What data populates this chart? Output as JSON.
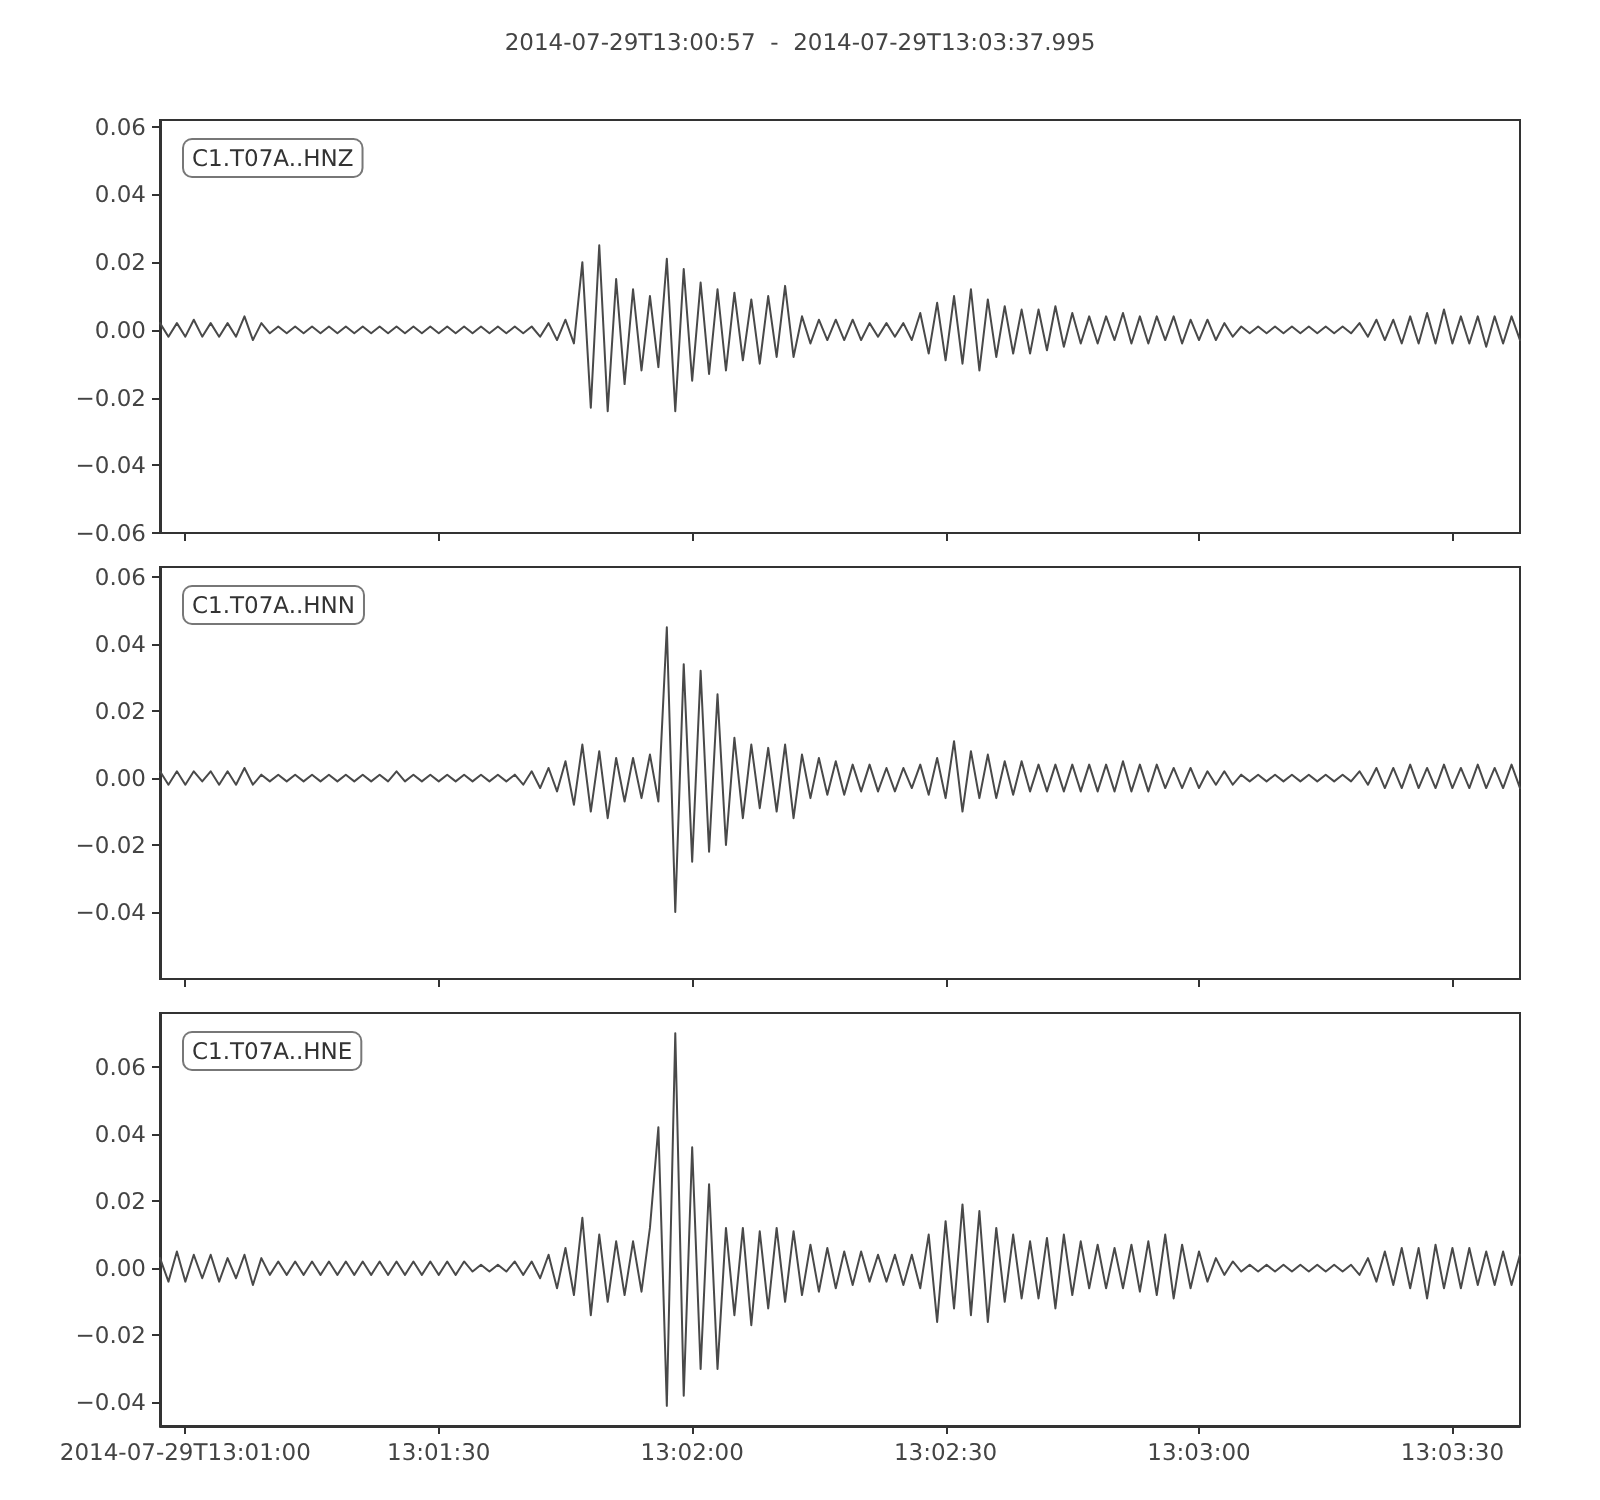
{
  "chart_data": [
    {
      "type": "line",
      "title": "2014-07-29T13:00:57  -  2014-07-29T13:03:37.995",
      "annotations": [
        "C1.T07A..HNZ"
      ],
      "color": "#494949",
      "x": [
        "2014-07-29T13:00:57",
        "2014-07-29T13:00:58",
        "2014-07-29T13:00:59",
        "2014-07-29T13:01:00",
        "2014-07-29T13:01:01",
        "2014-07-29T13:01:02",
        "2014-07-29T13:01:03",
        "2014-07-29T13:01:04",
        "2014-07-29T13:01:05",
        "2014-07-29T13:01:06",
        "2014-07-29T13:01:07",
        "2014-07-29T13:01:08",
        "2014-07-29T13:01:09",
        "2014-07-29T13:01:10",
        "2014-07-29T13:01:11",
        "2014-07-29T13:01:12",
        "2014-07-29T13:01:13",
        "2014-07-29T13:01:14",
        "2014-07-29T13:01:15",
        "2014-07-29T13:01:16",
        "2014-07-29T13:01:17",
        "2014-07-29T13:01:18",
        "2014-07-29T13:01:19",
        "2014-07-29T13:01:20",
        "2014-07-29T13:01:21",
        "2014-07-29T13:01:22",
        "2014-07-29T13:01:23",
        "2014-07-29T13:01:24",
        "2014-07-29T13:01:25",
        "2014-07-29T13:01:26",
        "2014-07-29T13:01:27",
        "2014-07-29T13:01:28",
        "2014-07-29T13:01:29",
        "2014-07-29T13:01:30",
        "2014-07-29T13:01:31",
        "2014-07-29T13:01:32",
        "2014-07-29T13:01:33",
        "2014-07-29T13:01:34",
        "2014-07-29T13:01:35",
        "2014-07-29T13:01:36",
        "2014-07-29T13:01:37",
        "2014-07-29T13:01:38",
        "2014-07-29T13:01:39",
        "2014-07-29T13:01:40",
        "2014-07-29T13:01:41",
        "2014-07-29T13:01:42",
        "2014-07-29T13:01:43",
        "2014-07-29T13:01:44",
        "2014-07-29T13:01:45",
        "2014-07-29T13:01:46",
        "2014-07-29T13:01:47",
        "2014-07-29T13:01:48",
        "2014-07-29T13:01:49",
        "2014-07-29T13:01:50",
        "2014-07-29T13:01:51",
        "2014-07-29T13:01:52",
        "2014-07-29T13:01:53",
        "2014-07-29T13:01:54",
        "2014-07-29T13:01:55",
        "2014-07-29T13:01:56",
        "2014-07-29T13:01:57",
        "2014-07-29T13:01:58",
        "2014-07-29T13:01:59",
        "2014-07-29T13:02:00",
        "2014-07-29T13:02:01",
        "2014-07-29T13:02:02",
        "2014-07-29T13:02:03",
        "2014-07-29T13:02:04",
        "2014-07-29T13:02:05",
        "2014-07-29T13:02:06",
        "2014-07-29T13:02:07",
        "2014-07-29T13:02:08",
        "2014-07-29T13:02:09",
        "2014-07-29T13:02:10",
        "2014-07-29T13:02:11",
        "2014-07-29T13:02:12",
        "2014-07-29T13:02:13",
        "2014-07-29T13:02:14",
        "2014-07-29T13:02:15",
        "2014-07-29T13:02:16",
        "2014-07-29T13:02:17",
        "2014-07-29T13:02:18",
        "2014-07-29T13:02:19",
        "2014-07-29T13:02:20",
        "2014-07-29T13:02:21",
        "2014-07-29T13:02:22",
        "2014-07-29T13:02:23",
        "2014-07-29T13:02:24",
        "2014-07-29T13:02:25",
        "2014-07-29T13:02:26",
        "2014-07-29T13:02:27",
        "2014-07-29T13:02:28",
        "2014-07-29T13:02:29",
        "2014-07-29T13:02:30",
        "2014-07-29T13:02:31",
        "2014-07-29T13:02:32",
        "2014-07-29T13:02:33",
        "2014-07-29T13:02:34",
        "2014-07-29T13:02:35",
        "2014-07-29T13:02:36",
        "2014-07-29T13:02:37",
        "2014-07-29T13:02:38",
        "2014-07-29T13:02:39",
        "2014-07-29T13:02:40",
        "2014-07-29T13:02:41",
        "2014-07-29T13:02:42",
        "2014-07-29T13:02:43",
        "2014-07-29T13:02:44",
        "2014-07-29T13:02:45",
        "2014-07-29T13:02:46",
        "2014-07-29T13:02:47",
        "2014-07-29T13:02:48",
        "2014-07-29T13:02:49",
        "2014-07-29T13:02:50",
        "2014-07-29T13:02:51",
        "2014-07-29T13:02:52",
        "2014-07-29T13:02:53",
        "2014-07-29T13:02:54",
        "2014-07-29T13:02:55",
        "2014-07-29T13:02:56",
        "2014-07-29T13:02:57",
        "2014-07-29T13:02:58",
        "2014-07-29T13:02:59",
        "2014-07-29T13:03:00",
        "2014-07-29T13:03:01",
        "2014-07-29T13:03:02",
        "2014-07-29T13:03:03",
        "2014-07-29T13:03:04",
        "2014-07-29T13:03:05",
        "2014-07-29T13:03:06",
        "2014-07-29T13:03:07",
        "2014-07-29T13:03:08",
        "2014-07-29T13:03:09",
        "2014-07-29T13:03:10",
        "2014-07-29T13:03:11",
        "2014-07-29T13:03:12",
        "2014-07-29T13:03:13",
        "2014-07-29T13:03:14",
        "2014-07-29T13:03:15",
        "2014-07-29T13:03:16",
        "2014-07-29T13:03:17",
        "2014-07-29T13:03:18",
        "2014-07-29T13:03:19",
        "2014-07-29T13:03:20",
        "2014-07-29T13:03:21",
        "2014-07-29T13:03:22",
        "2014-07-29T13:03:23",
        "2014-07-29T13:03:24",
        "2014-07-29T13:03:25",
        "2014-07-29T13:03:26",
        "2014-07-29T13:03:27",
        "2014-07-29T13:03:28",
        "2014-07-29T13:03:29",
        "2014-07-29T13:03:30",
        "2014-07-29T13:03:31",
        "2014-07-29T13:03:32",
        "2014-07-29T13:03:33",
        "2014-07-29T13:03:34",
        "2014-07-29T13:03:35",
        "2014-07-29T13:03:36",
        "2014-07-29T13:03:37",
        "2014-07-29T13:03:38"
      ],
      "values": [
        0.002,
        -0.002,
        0.002,
        -0.002,
        0.003,
        -0.002,
        0.002,
        -0.002,
        0.002,
        -0.002,
        0.004,
        -0.003,
        0.002,
        -0.001,
        0.001,
        -0.001,
        0.001,
        -0.001,
        0.001,
        -0.001,
        0.001,
        -0.001,
        0.001,
        -0.001,
        0.001,
        -0.001,
        0.001,
        -0.001,
        0.001,
        -0.001,
        0.001,
        -0.001,
        0.001,
        -0.001,
        0.001,
        -0.001,
        0.001,
        -0.001,
        0.001,
        -0.001,
        0.001,
        -0.001,
        0.001,
        -0.001,
        0.001,
        -0.002,
        0.002,
        -0.003,
        0.003,
        -0.004,
        0.02,
        -0.023,
        0.025,
        -0.024,
        0.015,
        -0.016,
        0.012,
        -0.012,
        0.01,
        -0.011,
        0.021,
        -0.024,
        0.018,
        -0.015,
        0.014,
        -0.013,
        0.012,
        -0.012,
        0.011,
        -0.009,
        0.009,
        -0.01,
        0.01,
        -0.008,
        0.013,
        -0.008,
        0.004,
        -0.004,
        0.003,
        -0.003,
        0.003,
        -0.003,
        0.003,
        -0.003,
        0.002,
        -0.002,
        0.002,
        -0.002,
        0.002,
        -0.003,
        0.005,
        -0.007,
        0.008,
        -0.009,
        0.01,
        -0.01,
        0.012,
        -0.012,
        0.009,
        -0.008,
        0.007,
        -0.007,
        0.006,
        -0.007,
        0.006,
        -0.006,
        0.007,
        -0.005,
        0.005,
        -0.004,
        0.004,
        -0.004,
        0.004,
        -0.003,
        0.005,
        -0.004,
        0.004,
        -0.004,
        0.004,
        -0.003,
        0.004,
        -0.004,
        0.003,
        -0.003,
        0.003,
        -0.003,
        0.002,
        -0.002,
        0.001,
        -0.001,
        0.001,
        -0.001,
        0.001,
        -0.001,
        0.001,
        -0.001,
        0.001,
        -0.001,
        0.001,
        -0.001,
        0.001,
        -0.001,
        0.002,
        -0.002,
        0.003,
        -0.003,
        0.003,
        -0.004,
        0.004,
        -0.004,
        0.005,
        -0.004,
        0.006,
        -0.004,
        0.004,
        -0.004,
        0.004,
        -0.005,
        0.004,
        -0.004,
        0.004,
        -0.003
      ],
      "xlim": [
        "2014-07-29T13:00:57",
        "2014-07-29T13:03:38"
      ],
      "xticks": [
        "2014-07-29T13:01:00",
        "2014-07-29T13:01:30",
        "2014-07-29T13:02:00",
        "2014-07-29T13:02:30",
        "2014-07-29T13:03:00",
        "2014-07-29T13:03:30"
      ],
      "ylim": [
        -0.06,
        0.062
      ],
      "yticks": [
        {
          "value": -0.06,
          "label": "−0.06"
        },
        {
          "value": -0.04,
          "label": "−0.04"
        },
        {
          "value": -0.02,
          "label": "−0.02"
        },
        {
          "value": 0,
          "label": "0.00"
        },
        0.02,
        0.04,
        0.06
      ],
      "tick_labels": "y"
    },
    {
      "type": "line",
      "annotations": [
        "C1.T07A..HNN"
      ],
      "color": "#494949",
      "x": [
        "2014-07-29T13:00:57",
        "2014-07-29T13:00:58",
        "2014-07-29T13:00:59",
        "2014-07-29T13:01:00",
        "2014-07-29T13:01:01",
        "2014-07-29T13:01:02",
        "2014-07-29T13:01:03",
        "2014-07-29T13:01:04",
        "2014-07-29T13:01:05",
        "2014-07-29T13:01:06",
        "2014-07-29T13:01:07",
        "2014-07-29T13:01:08",
        "2014-07-29T13:01:09",
        "2014-07-29T13:01:10",
        "2014-07-29T13:01:11",
        "2014-07-29T13:01:12",
        "2014-07-29T13:01:13",
        "2014-07-29T13:01:14",
        "2014-07-29T13:01:15",
        "2014-07-29T13:01:16",
        "2014-07-29T13:01:17",
        "2014-07-29T13:01:18",
        "2014-07-29T13:01:19",
        "2014-07-29T13:01:20",
        "2014-07-29T13:01:21",
        "2014-07-29T13:01:22",
        "2014-07-29T13:01:23",
        "2014-07-29T13:01:24",
        "2014-07-29T13:01:25",
        "2014-07-29T13:01:26",
        "2014-07-29T13:01:27",
        "2014-07-29T13:01:28",
        "2014-07-29T13:01:29",
        "2014-07-29T13:01:30",
        "2014-07-29T13:01:31",
        "2014-07-29T13:01:32",
        "2014-07-29T13:01:33",
        "2014-07-29T13:01:34",
        "2014-07-29T13:01:35",
        "2014-07-29T13:01:36",
        "2014-07-29T13:01:37",
        "2014-07-29T13:01:38",
        "2014-07-29T13:01:39",
        "2014-07-29T13:01:40",
        "2014-07-29T13:01:41",
        "2014-07-29T13:01:42",
        "2014-07-29T13:01:43",
        "2014-07-29T13:01:44",
        "2014-07-29T13:01:45",
        "2014-07-29T13:01:46",
        "2014-07-29T13:01:47",
        "2014-07-29T13:01:48",
        "2014-07-29T13:01:49",
        "2014-07-29T13:01:50",
        "2014-07-29T13:01:51",
        "2014-07-29T13:01:52",
        "2014-07-29T13:01:53",
        "2014-07-29T13:01:54",
        "2014-07-29T13:01:55",
        "2014-07-29T13:01:56",
        "2014-07-29T13:01:57",
        "2014-07-29T13:01:58",
        "2014-07-29T13:01:59",
        "2014-07-29T13:02:00",
        "2014-07-29T13:02:01",
        "2014-07-29T13:02:02",
        "2014-07-29T13:02:03",
        "2014-07-29T13:02:04",
        "2014-07-29T13:02:05",
        "2014-07-29T13:02:06",
        "2014-07-29T13:02:07",
        "2014-07-29T13:02:08",
        "2014-07-29T13:02:09",
        "2014-07-29T13:02:10",
        "2014-07-29T13:02:11",
        "2014-07-29T13:02:12",
        "2014-07-29T13:02:13",
        "2014-07-29T13:02:14",
        "2014-07-29T13:02:15",
        "2014-07-29T13:02:16",
        "2014-07-29T13:02:17",
        "2014-07-29T13:02:18",
        "2014-07-29T13:02:19",
        "2014-07-29T13:02:20",
        "2014-07-29T13:02:21",
        "2014-07-29T13:02:22",
        "2014-07-29T13:02:23",
        "2014-07-29T13:02:24",
        "2014-07-29T13:02:25",
        "2014-07-29T13:02:26",
        "2014-07-29T13:02:27",
        "2014-07-29T13:02:28",
        "2014-07-29T13:02:29",
        "2014-07-29T13:02:30",
        "2014-07-29T13:02:31",
        "2014-07-29T13:02:32",
        "2014-07-29T13:02:33",
        "2014-07-29T13:02:34",
        "2014-07-29T13:02:35",
        "2014-07-29T13:02:36",
        "2014-07-29T13:02:37",
        "2014-07-29T13:02:38",
        "2014-07-29T13:02:39",
        "2014-07-29T13:02:40",
        "2014-07-29T13:02:41",
        "2014-07-29T13:02:42",
        "2014-07-29T13:02:43",
        "2014-07-29T13:02:44",
        "2014-07-29T13:02:45",
        "2014-07-29T13:02:46",
        "2014-07-29T13:02:47",
        "2014-07-29T13:02:48",
        "2014-07-29T13:02:49",
        "2014-07-29T13:02:50",
        "2014-07-29T13:02:51",
        "2014-07-29T13:02:52",
        "2014-07-29T13:02:53",
        "2014-07-29T13:02:54",
        "2014-07-29T13:02:55",
        "2014-07-29T13:02:56",
        "2014-07-29T13:02:57",
        "2014-07-29T13:02:58",
        "2014-07-29T13:02:59",
        "2014-07-29T13:03:00",
        "2014-07-29T13:03:01",
        "2014-07-29T13:03:02",
        "2014-07-29T13:03:03",
        "2014-07-29T13:03:04",
        "2014-07-29T13:03:05",
        "2014-07-29T13:03:06",
        "2014-07-29T13:03:07",
        "2014-07-29T13:03:08",
        "2014-07-29T13:03:09",
        "2014-07-29T13:03:10",
        "2014-07-29T13:03:11",
        "2014-07-29T13:03:12",
        "2014-07-29T13:03:13",
        "2014-07-29T13:03:14",
        "2014-07-29T13:03:15",
        "2014-07-29T13:03:16",
        "2014-07-29T13:03:17",
        "2014-07-29T13:03:18",
        "2014-07-29T13:03:19",
        "2014-07-29T13:03:20",
        "2014-07-29T13:03:21",
        "2014-07-29T13:03:22",
        "2014-07-29T13:03:23",
        "2014-07-29T13:03:24",
        "2014-07-29T13:03:25",
        "2014-07-29T13:03:26",
        "2014-07-29T13:03:27",
        "2014-07-29T13:03:28",
        "2014-07-29T13:03:29",
        "2014-07-29T13:03:30",
        "2014-07-29T13:03:31",
        "2014-07-29T13:03:32",
        "2014-07-29T13:03:33",
        "2014-07-29T13:03:34",
        "2014-07-29T13:03:35",
        "2014-07-29T13:03:36",
        "2014-07-29T13:03:37",
        "2014-07-29T13:03:38"
      ],
      "values": [
        0.002,
        -0.002,
        0.002,
        -0.002,
        0.002,
        -0.001,
        0.002,
        -0.002,
        0.002,
        -0.002,
        0.003,
        -0.002,
        0.001,
        -0.001,
        0.001,
        -0.001,
        0.001,
        -0.001,
        0.001,
        -0.001,
        0.001,
        -0.001,
        0.001,
        -0.001,
        0.001,
        -0.001,
        0.001,
        -0.001,
        0.002,
        -0.001,
        0.001,
        -0.001,
        0.001,
        -0.001,
        0.001,
        -0.001,
        0.001,
        -0.001,
        0.001,
        -0.001,
        0.001,
        -0.001,
        0.001,
        -0.002,
        0.002,
        -0.003,
        0.003,
        -0.004,
        0.005,
        -0.008,
        0.01,
        -0.01,
        0.008,
        -0.012,
        0.006,
        -0.007,
        0.006,
        -0.006,
        0.007,
        -0.007,
        0.045,
        -0.04,
        0.034,
        -0.025,
        0.032,
        -0.022,
        0.025,
        -0.02,
        0.012,
        -0.012,
        0.01,
        -0.009,
        0.009,
        -0.01,
        0.01,
        -0.012,
        0.007,
        -0.006,
        0.006,
        -0.005,
        0.005,
        -0.005,
        0.004,
        -0.004,
        0.004,
        -0.004,
        0.003,
        -0.004,
        0.003,
        -0.003,
        0.004,
        -0.005,
        0.006,
        -0.006,
        0.011,
        -0.01,
        0.008,
        -0.006,
        0.007,
        -0.006,
        0.005,
        -0.005,
        0.005,
        -0.004,
        0.004,
        -0.004,
        0.004,
        -0.004,
        0.004,
        -0.004,
        0.004,
        -0.004,
        0.004,
        -0.004,
        0.005,
        -0.004,
        0.004,
        -0.004,
        0.004,
        -0.003,
        0.003,
        -0.003,
        0.003,
        -0.003,
        0.002,
        -0.002,
        0.002,
        -0.002,
        0.001,
        -0.001,
        0.001,
        -0.001,
        0.001,
        -0.001,
        0.001,
        -0.001,
        0.001,
        -0.001,
        0.001,
        -0.001,
        0.001,
        -0.001,
        0.002,
        -0.002,
        0.003,
        -0.003,
        0.003,
        -0.003,
        0.004,
        -0.003,
        0.003,
        -0.003,
        0.004,
        -0.003,
        0.003,
        -0.003,
        0.004,
        -0.003,
        0.003,
        -0.003,
        0.004,
        -0.003
      ],
      "xlim": [
        "2014-07-29T13:00:57",
        "2014-07-29T13:03:38"
      ],
      "xticks": [
        "2014-07-29T13:01:00",
        "2014-07-29T13:01:30",
        "2014-07-29T13:02:00",
        "2014-07-29T13:02:30",
        "2014-07-29T13:03:00",
        "2014-07-29T13:03:30"
      ],
      "ylim": [
        -0.06,
        0.063
      ],
      "yticks": [
        {
          "value": -0.04,
          "label": "−0.04"
        },
        {
          "value": -0.02,
          "label": "−0.02"
        },
        {
          "value": 0,
          "label": "0.00"
        },
        0.02,
        0.04,
        0.06
      ],
      "tick_labels": "y"
    },
    {
      "type": "line",
      "annotations": [
        "C1.T07A..HNE"
      ],
      "color": "#494949",
      "x": [
        "2014-07-29T13:00:57",
        "2014-07-29T13:00:58",
        "2014-07-29T13:00:59",
        "2014-07-29T13:01:00",
        "2014-07-29T13:01:01",
        "2014-07-29T13:01:02",
        "2014-07-29T13:01:03",
        "2014-07-29T13:01:04",
        "2014-07-29T13:01:05",
        "2014-07-29T13:01:06",
        "2014-07-29T13:01:07",
        "2014-07-29T13:01:08",
        "2014-07-29T13:01:09",
        "2014-07-29T13:01:10",
        "2014-07-29T13:01:11",
        "2014-07-29T13:01:12",
        "2014-07-29T13:01:13",
        "2014-07-29T13:01:14",
        "2014-07-29T13:01:15",
        "2014-07-29T13:01:16",
        "2014-07-29T13:01:17",
        "2014-07-29T13:01:18",
        "2014-07-29T13:01:19",
        "2014-07-29T13:01:20",
        "2014-07-29T13:01:21",
        "2014-07-29T13:01:22",
        "2014-07-29T13:01:23",
        "2014-07-29T13:01:24",
        "2014-07-29T13:01:25",
        "2014-07-29T13:01:26",
        "2014-07-29T13:01:27",
        "2014-07-29T13:01:28",
        "2014-07-29T13:01:29",
        "2014-07-29T13:01:30",
        "2014-07-29T13:01:31",
        "2014-07-29T13:01:32",
        "2014-07-29T13:01:33",
        "2014-07-29T13:01:34",
        "2014-07-29T13:01:35",
        "2014-07-29T13:01:36",
        "2014-07-29T13:01:37",
        "2014-07-29T13:01:38",
        "2014-07-29T13:01:39",
        "2014-07-29T13:01:40",
        "2014-07-29T13:01:41",
        "2014-07-29T13:01:42",
        "2014-07-29T13:01:43",
        "2014-07-29T13:01:44",
        "2014-07-29T13:01:45",
        "2014-07-29T13:01:46",
        "2014-07-29T13:01:47",
        "2014-07-29T13:01:48",
        "2014-07-29T13:01:49",
        "2014-07-29T13:01:50",
        "2014-07-29T13:01:51",
        "2014-07-29T13:01:52",
        "2014-07-29T13:01:53",
        "2014-07-29T13:01:54",
        "2014-07-29T13:01:55",
        "2014-07-29T13:01:56",
        "2014-07-29T13:01:57",
        "2014-07-29T13:01:58",
        "2014-07-29T13:01:59",
        "2014-07-29T13:02:00",
        "2014-07-29T13:02:01",
        "2014-07-29T13:02:02",
        "2014-07-29T13:02:03",
        "2014-07-29T13:02:04",
        "2014-07-29T13:02:05",
        "2014-07-29T13:02:06",
        "2014-07-29T13:02:07",
        "2014-07-29T13:02:08",
        "2014-07-29T13:02:09",
        "2014-07-29T13:02:10",
        "2014-07-29T13:02:11",
        "2014-07-29T13:02:12",
        "2014-07-29T13:02:13",
        "2014-07-29T13:02:14",
        "2014-07-29T13:02:15",
        "2014-07-29T13:02:16",
        "2014-07-29T13:02:17",
        "2014-07-29T13:02:18",
        "2014-07-29T13:02:19",
        "2014-07-29T13:02:20",
        "2014-07-29T13:02:21",
        "2014-07-29T13:02:22",
        "2014-07-29T13:02:23",
        "2014-07-29T13:02:24",
        "2014-07-29T13:02:25",
        "2014-07-29T13:02:26",
        "2014-07-29T13:02:27",
        "2014-07-29T13:02:28",
        "2014-07-29T13:02:29",
        "2014-07-29T13:02:30",
        "2014-07-29T13:02:31",
        "2014-07-29T13:02:32",
        "2014-07-29T13:02:33",
        "2014-07-29T13:02:34",
        "2014-07-29T13:02:35",
        "2014-07-29T13:02:36",
        "2014-07-29T13:02:37",
        "2014-07-29T13:02:38",
        "2014-07-29T13:02:39",
        "2014-07-29T13:02:40",
        "2014-07-29T13:02:41",
        "2014-07-29T13:02:42",
        "2014-07-29T13:02:43",
        "2014-07-29T13:02:44",
        "2014-07-29T13:02:45",
        "2014-07-29T13:02:46",
        "2014-07-29T13:02:47",
        "2014-07-29T13:02:48",
        "2014-07-29T13:02:49",
        "2014-07-29T13:02:50",
        "2014-07-29T13:02:51",
        "2014-07-29T13:02:52",
        "2014-07-29T13:02:53",
        "2014-07-29T13:02:54",
        "2014-07-29T13:02:55",
        "2014-07-29T13:02:56",
        "2014-07-29T13:02:57",
        "2014-07-29T13:02:58",
        "2014-07-29T13:02:59",
        "2014-07-29T13:03:00",
        "2014-07-29T13:03:01",
        "2014-07-29T13:03:02",
        "2014-07-29T13:03:03",
        "2014-07-29T13:03:04",
        "2014-07-29T13:03:05",
        "2014-07-29T13:03:06",
        "2014-07-29T13:03:07",
        "2014-07-29T13:03:08",
        "2014-07-29T13:03:09",
        "2014-07-29T13:03:10",
        "2014-07-29T13:03:11",
        "2014-07-29T13:03:12",
        "2014-07-29T13:03:13",
        "2014-07-29T13:03:14",
        "2014-07-29T13:03:15",
        "2014-07-29T13:03:16",
        "2014-07-29T13:03:17",
        "2014-07-29T13:03:18",
        "2014-07-29T13:03:19",
        "2014-07-29T13:03:20",
        "2014-07-29T13:03:21",
        "2014-07-29T13:03:22",
        "2014-07-29T13:03:23",
        "2014-07-29T13:03:24",
        "2014-07-29T13:03:25",
        "2014-07-29T13:03:26",
        "2014-07-29T13:03:27",
        "2014-07-29T13:03:28",
        "2014-07-29T13:03:29",
        "2014-07-29T13:03:30",
        "2014-07-29T13:03:31",
        "2014-07-29T13:03:32",
        "2014-07-29T13:03:33",
        "2014-07-29T13:03:34",
        "2014-07-29T13:03:35",
        "2014-07-29T13:03:36",
        "2014-07-29T13:03:37",
        "2014-07-29T13:03:38"
      ],
      "values": [
        0.003,
        -0.004,
        0.005,
        -0.004,
        0.004,
        -0.003,
        0.004,
        -0.004,
        0.003,
        -0.003,
        0.004,
        -0.005,
        0.003,
        -0.002,
        0.002,
        -0.002,
        0.002,
        -0.002,
        0.002,
        -0.002,
        0.002,
        -0.002,
        0.002,
        -0.002,
        0.002,
        -0.002,
        0.002,
        -0.002,
        0.002,
        -0.002,
        0.002,
        -0.002,
        0.002,
        -0.002,
        0.002,
        -0.002,
        0.002,
        -0.001,
        0.001,
        -0.001,
        0.001,
        -0.001,
        0.002,
        -0.002,
        0.002,
        -0.003,
        0.004,
        -0.006,
        0.006,
        -0.008,
        0.015,
        -0.014,
        0.01,
        -0.01,
        0.008,
        -0.008,
        0.008,
        -0.007,
        0.012,
        0.042,
        -0.041,
        0.07,
        -0.038,
        0.036,
        -0.03,
        0.025,
        -0.03,
        0.012,
        -0.014,
        0.012,
        -0.017,
        0.011,
        -0.012,
        0.012,
        -0.01,
        0.011,
        -0.008,
        0.007,
        -0.007,
        0.006,
        -0.006,
        0.005,
        -0.005,
        0.005,
        -0.004,
        0.004,
        -0.004,
        0.004,
        -0.005,
        0.004,
        -0.006,
        0.01,
        -0.016,
        0.014,
        -0.012,
        0.019,
        -0.014,
        0.017,
        -0.016,
        0.012,
        -0.01,
        0.01,
        -0.009,
        0.008,
        -0.009,
        0.009,
        -0.012,
        0.01,
        -0.008,
        0.008,
        -0.006,
        0.007,
        -0.006,
        0.006,
        -0.006,
        0.007,
        -0.007,
        0.008,
        -0.008,
        0.01,
        -0.009,
        0.007,
        -0.006,
        0.005,
        -0.004,
        0.003,
        -0.002,
        0.002,
        -0.001,
        0.001,
        -0.001,
        0.001,
        -0.001,
        0.001,
        -0.001,
        0.001,
        -0.001,
        0.001,
        -0.001,
        0.001,
        -0.001,
        0.001,
        -0.002,
        0.003,
        -0.004,
        0.005,
        -0.005,
        0.006,
        -0.006,
        0.006,
        -0.009,
        0.007,
        -0.006,
        0.006,
        -0.006,
        0.006,
        -0.005,
        0.005,
        -0.005,
        0.005,
        -0.005,
        0.004
      ],
      "xlim": [
        "2014-07-29T13:00:57",
        "2014-07-29T13:03:38"
      ],
      "xticks": [
        "2014-07-29T13:01:00",
        {
          "value": "2014-07-29T13:01:30",
          "label": "13:01:30"
        },
        {
          "value": "2014-07-29T13:02:00",
          "label": "13:02:00"
        },
        {
          "value": "2014-07-29T13:02:30",
          "label": "13:02:30"
        },
        {
          "value": "2014-07-29T13:03:00",
          "label": "13:03:00"
        },
        {
          "value": "2014-07-29T13:03:30",
          "label": "13:03:30"
        }
      ],
      "ylim": [
        -0.047,
        0.076
      ],
      "yticks": [
        {
          "value": -0.04,
          "label": "−0.04"
        },
        {
          "value": -0.02,
          "label": "−0.02"
        },
        {
          "value": 0,
          "label": "0.00"
        },
        0.02,
        0.04,
        0.06
      ]
    }
  ]
}
